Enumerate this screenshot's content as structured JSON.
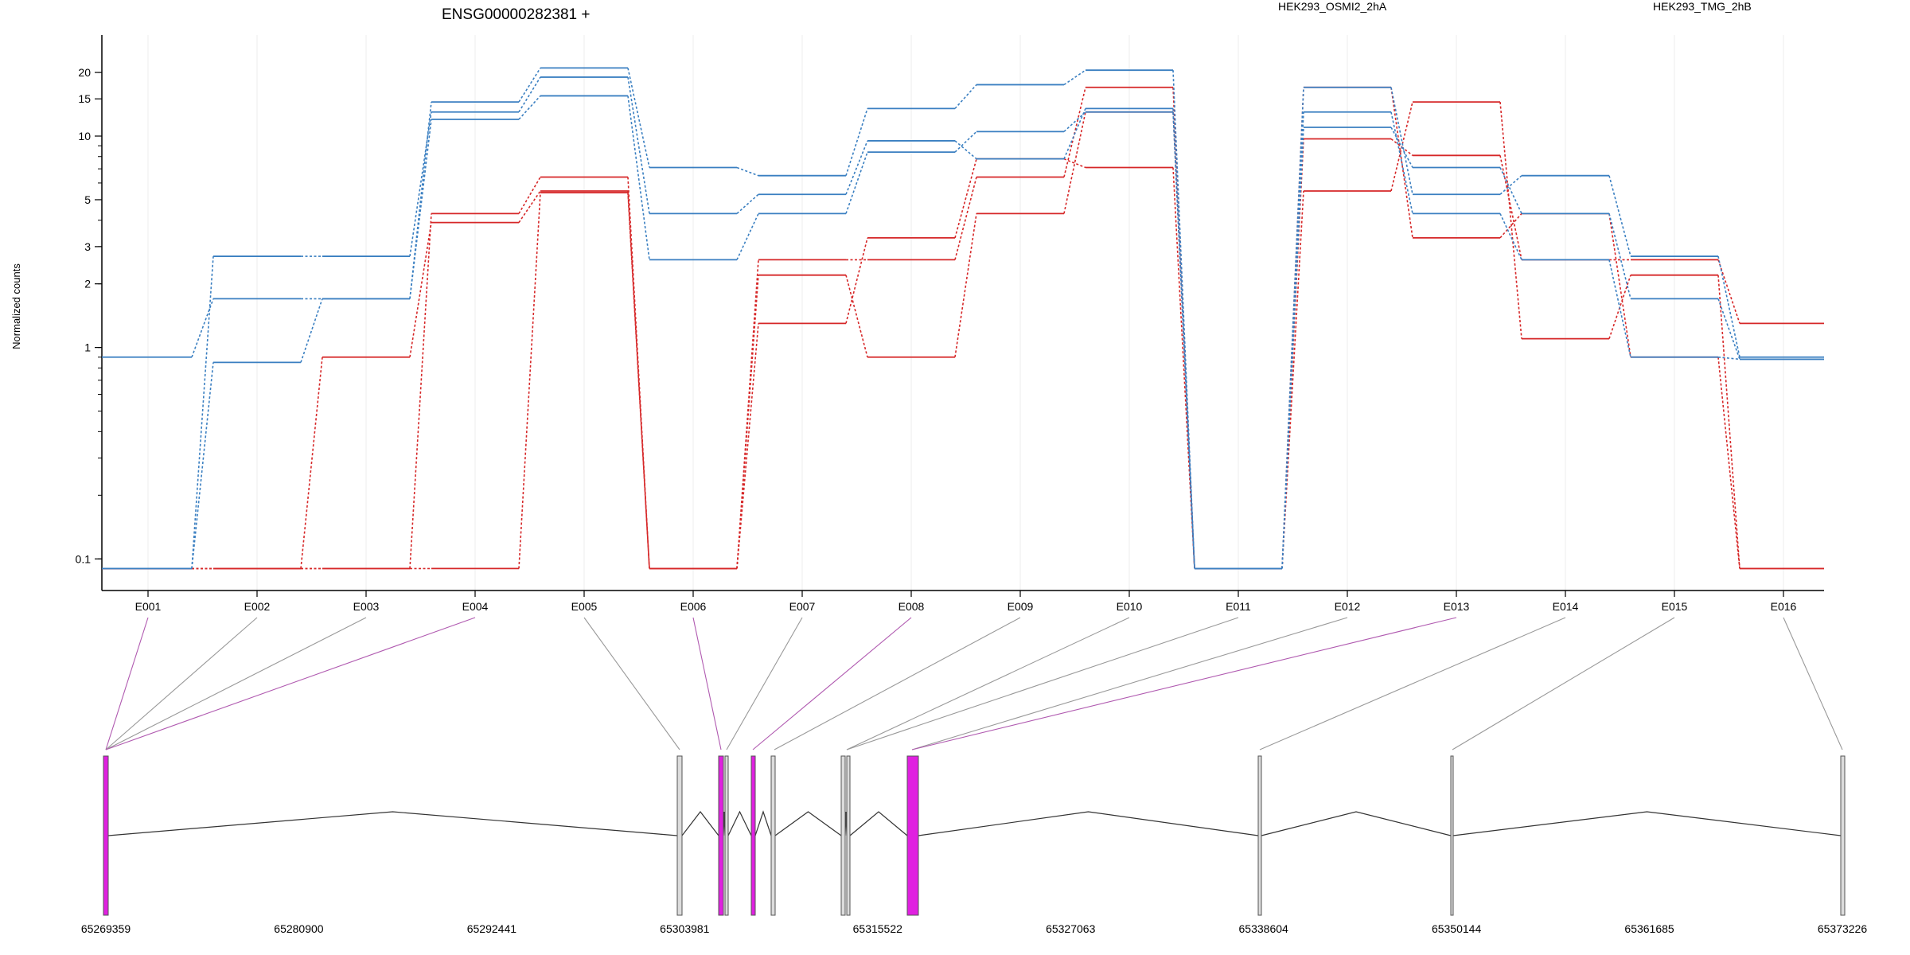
{
  "title": "ENSG00000282381 +",
  "legend": [
    {
      "name": "HEK293_OSMI2_2hA",
      "color": "#d62728"
    },
    {
      "name": "HEK293_TMG_2hB",
      "color": "#3a7fc1"
    }
  ],
  "chart_data": {
    "type": "line",
    "title": "ENSG00000282381 +",
    "ylabel": "Normalized counts",
    "yscale": "log",
    "ylim": [
      0.08,
      24
    ],
    "ytick_labels": [
      "0.1",
      "1",
      "2",
      "3",
      "5",
      "10",
      "15",
      "20"
    ],
    "ytick_values": [
      0.1,
      1,
      2,
      3,
      5,
      10,
      15,
      20
    ],
    "categories": [
      "E001",
      "E002",
      "E003",
      "E004",
      "E005",
      "E006",
      "E007",
      "E008",
      "E009",
      "E010",
      "E011",
      "E012",
      "E013",
      "E014",
      "E015",
      "E016"
    ],
    "grid": "vertical at exons",
    "legend_position": "top",
    "series": [
      {
        "group": "HEK293_OSMI2_2hA",
        "color": "#d62728",
        "values": [
          0.09,
          0.09,
          0.09,
          4.3,
          6.4,
          0.09,
          2.6,
          2.6,
          6.4,
          17,
          0.09,
          9.7,
          8.1,
          2.6,
          2.6,
          1.3
        ]
      },
      {
        "group": "HEK293_OSMI2_2hA",
        "color": "#d62728",
        "values": [
          0.09,
          0.09,
          0.9,
          3.9,
          5.5,
          0.09,
          2.2,
          0.9,
          4.3,
          13,
          0.09,
          5.5,
          14.5,
          1.1,
          2.2,
          0.09
        ]
      },
      {
        "group": "HEK293_OSMI2_2hA",
        "color": "#d62728",
        "values": [
          0.09,
          0.09,
          0.09,
          0.09,
          5.4,
          0.09,
          1.3,
          3.3,
          7.8,
          7.1,
          0.09,
          17,
          3.3,
          4.3,
          0.9,
          0.09
        ]
      },
      {
        "group": "HEK293_TMG_2hB",
        "color": "#3a7fc1",
        "values": [
          0.9,
          1.7,
          1.7,
          14.5,
          21,
          7.1,
          6.5,
          13.5,
          17.5,
          20.5,
          0.09,
          17,
          5.3,
          6.5,
          2.7,
          0.9
        ]
      },
      {
        "group": "HEK293_TMG_2hB",
        "color": "#3a7fc1",
        "values": [
          0.09,
          2.7,
          2.7,
          13,
          19,
          4.3,
          5.3,
          9.5,
          7.8,
          13.5,
          0.09,
          11,
          7.1,
          4.3,
          1.7,
          0.88
        ]
      },
      {
        "group": "HEK293_TMG_2hB",
        "color": "#3a7fc1",
        "values": [
          0.09,
          0.85,
          1.7,
          12,
          15.5,
          2.6,
          4.3,
          8.4,
          10.5,
          13,
          0.09,
          13,
          4.3,
          2.6,
          0.9,
          0.88
        ]
      }
    ],
    "gene_model": {
      "coordinate_labels": [
        "65269359",
        "65280900",
        "65292441",
        "65303981",
        "65315522",
        "65327063",
        "65338604",
        "65350144",
        "65361685",
        "65373226"
      ],
      "genomic_start": 65269359,
      "genomic_end": 65373226,
      "highlighted_exons": [
        "E001",
        "E004",
        "E006",
        "E008",
        "E013"
      ],
      "exon_color": "#e020e0"
    }
  }
}
